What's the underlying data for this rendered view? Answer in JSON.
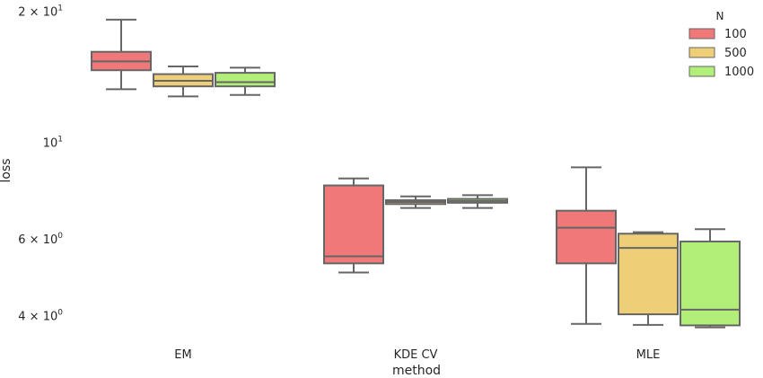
{
  "chart_data": {
    "type": "box",
    "xlabel": "method",
    "ylabel": "loss",
    "yscale": "log",
    "ylim": [
      3.65,
      21.0
    ],
    "y_ticks": [
      {
        "value": 4,
        "mantissa": "4",
        "exponent": "0"
      },
      {
        "value": 6,
        "mantissa": "6",
        "exponent": "0"
      },
      {
        "value": 10,
        "mantissa": "",
        "exponent": "1"
      },
      {
        "value": 20,
        "mantissa": "2",
        "exponent": "1"
      }
    ],
    "categories": [
      "EM",
      "KDE CV",
      "MLE"
    ],
    "legend": {
      "title": "N",
      "placement": "top-right"
    },
    "grid": false,
    "series": [
      {
        "name": "100",
        "color": "#f07878",
        "boxes": [
          {
            "whisker_low": 13.3,
            "q1": 14.7,
            "median": 15.4,
            "q3": 16.2,
            "whisker_high": 19.2
          },
          {
            "whisker_low": 5.05,
            "q1": 5.3,
            "median": 5.5,
            "q3": 8.0,
            "whisker_high": 8.3
          },
          {
            "whisker_low": 3.85,
            "q1": 5.3,
            "median": 6.4,
            "q3": 7.0,
            "whisker_high": 8.8
          }
        ]
      },
      {
        "name": "500",
        "color": "#eecf78",
        "boxes": [
          {
            "whisker_low": 12.8,
            "q1": 13.5,
            "median": 13.9,
            "q3": 14.4,
            "whisker_high": 15.0
          },
          {
            "whisker_low": 7.1,
            "q1": 7.25,
            "median": 7.33,
            "q3": 7.4,
            "whisker_high": 7.55
          },
          {
            "whisker_low": 3.83,
            "q1": 4.05,
            "median": 5.75,
            "q3": 6.2,
            "whisker_high": 6.25
          }
        ]
      },
      {
        "name": "1000",
        "color": "#b2ef78",
        "boxes": [
          {
            "whisker_low": 12.9,
            "q1": 13.5,
            "median": 13.8,
            "q3": 14.5,
            "whisker_high": 14.9
          },
          {
            "whisker_low": 7.1,
            "q1": 7.3,
            "median": 7.37,
            "q3": 7.45,
            "whisker_high": 7.6
          },
          {
            "whisker_low": 3.78,
            "q1": 3.82,
            "median": 4.15,
            "q3": 5.95,
            "whisker_high": 6.35
          }
        ]
      }
    ]
  }
}
